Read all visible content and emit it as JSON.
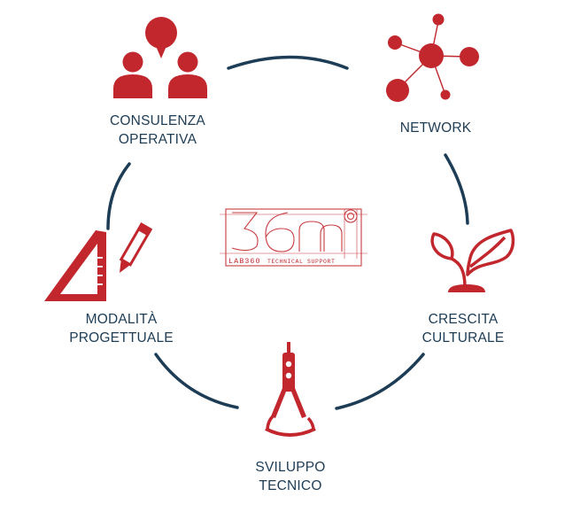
{
  "colors": {
    "accent": "#c1272d",
    "arc": "#1d3c55",
    "text": "#1d3c55"
  },
  "logo": {
    "brand": "LAB360",
    "subtitle": "TECHNICAL SUPPORT"
  },
  "nodes": [
    {
      "id": "consulenza",
      "icon": "people-speech-icon",
      "line1": "CONSULENZA",
      "line2": "OPERATIVA"
    },
    {
      "id": "network",
      "icon": "network-nodes-icon",
      "line1": "NETWORK",
      "line2": ""
    },
    {
      "id": "crescita",
      "icon": "plant-sprout-icon",
      "line1": "CRESCITA",
      "line2": "CULTURALE"
    },
    {
      "id": "sviluppo",
      "icon": "compass-drafting-icon",
      "line1": "SVILUPPO",
      "line2": "TECNICO"
    },
    {
      "id": "modalita",
      "icon": "set-square-pencil-icon",
      "line1": "MODALITÀ",
      "line2": "PROGETTUALE"
    }
  ]
}
